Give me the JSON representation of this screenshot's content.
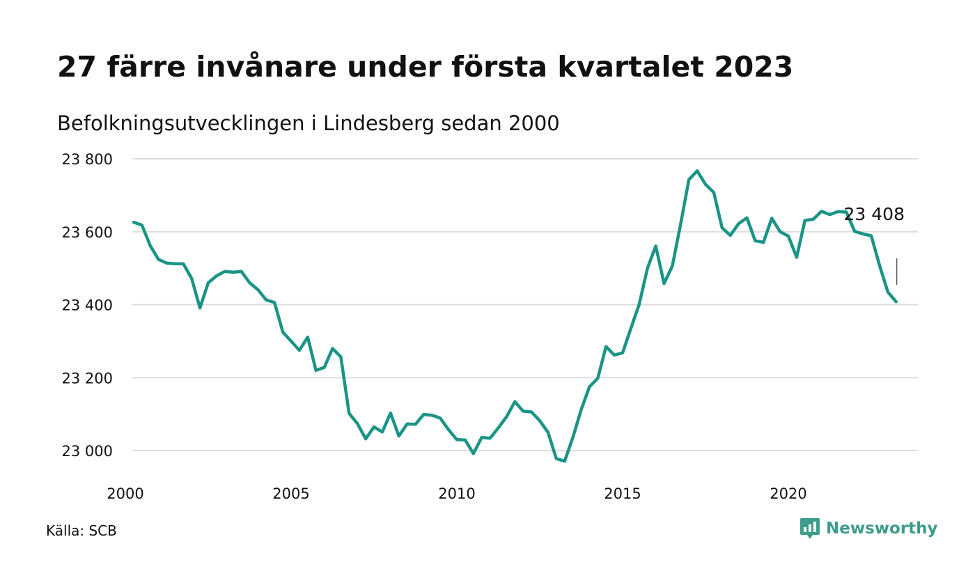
{
  "title": "27 färre invånare under första kvartalet 2023",
  "subtitle": "Befolkningsutvecklingen i Lindesberg sedan 2000",
  "source": "Källa: SCB",
  "brand": {
    "name": "Newsworthy",
    "color": "#3d9c8a",
    "icon": "newsworthy-logo-icon"
  },
  "chart_data": {
    "type": "line",
    "title": "27 färre invånare under första kvartalet 2023",
    "subtitle": "Befolkningsutvecklingen i Lindesberg sedan 2000",
    "xlabel": "",
    "ylabel": "",
    "xlim": [
      2000,
      2023.75
    ],
    "ylim": [
      22960,
      23810
    ],
    "y_ticks": [
      23000,
      23200,
      23400,
      23600,
      23800
    ],
    "y_tick_labels": [
      "23 000",
      "23 200",
      "23 400",
      "23 600",
      "23 800"
    ],
    "x_ticks": [
      2000,
      2005,
      2010,
      2015,
      2020
    ],
    "x_tick_labels": [
      "2000",
      "2005",
      "2010",
      "2015",
      "2020"
    ],
    "grid": "horizontal",
    "legend": "none",
    "line_color": "#1a9485",
    "last_value_label": "23 408",
    "series": [
      {
        "x": [
          2000.25,
          2000.5,
          2000.75,
          2001.0,
          2001.25,
          2001.5,
          2001.75,
          2002.0,
          2002.25,
          2002.5,
          2002.75,
          2003.0,
          2003.25,
          2003.5,
          2003.75,
          2004.0,
          2004.25,
          2004.5,
          2004.75,
          2005.0,
          2005.25,
          2005.5,
          2005.75,
          2006.0,
          2006.25,
          2006.5,
          2006.75,
          2007.0,
          2007.25,
          2007.5,
          2007.75,
          2008.0,
          2008.25,
          2008.5,
          2008.75,
          2009.0,
          2009.25,
          2009.5,
          2009.75,
          2010.0,
          2010.25,
          2010.5,
          2010.75,
          2011.0,
          2011.25,
          2011.5,
          2011.75,
          2012.0,
          2012.25,
          2012.5,
          2012.75,
          2013.0,
          2013.25,
          2013.5,
          2013.75,
          2014.0,
          2014.25,
          2014.5,
          2014.75,
          2015.0,
          2015.25,
          2015.5,
          2015.75,
          2016.0,
          2016.25,
          2016.5,
          2016.75,
          2017.0,
          2017.25,
          2017.5,
          2017.75,
          2018.0,
          2018.25,
          2018.5,
          2018.75,
          2019.0,
          2019.25,
          2019.5,
          2019.75,
          2020.0,
          2020.25,
          2020.5,
          2020.75,
          2021.0,
          2021.25,
          2021.5,
          2021.75,
          2022.0,
          2022.25,
          2022.5,
          2022.75,
          2023.0,
          2023.25
        ],
        "y": [
          23626,
          23618,
          23562,
          23524,
          23514,
          23512,
          23512,
          23472,
          23391,
          23460,
          23479,
          23491,
          23489,
          23491,
          23460,
          23441,
          23413,
          23406,
          23325,
          23300,
          23275,
          23311,
          23220,
          23228,
          23280,
          23257,
          23102,
          23074,
          23032,
          23065,
          23051,
          23103,
          23040,
          23073,
          23072,
          23099,
          23097,
          23089,
          23057,
          23030,
          23029,
          22992,
          23036,
          23034,
          23062,
          23093,
          23134,
          23108,
          23106,
          23082,
          23050,
          22978,
          22971,
          23036,
          23112,
          23175,
          23198,
          23285,
          23262,
          23268,
          23335,
          23401,
          23500,
          23561,
          23458,
          23506,
          23621,
          23743,
          23767,
          23730,
          23708,
          23611,
          23590,
          23622,
          23638,
          23575,
          23571,
          23637,
          23600,
          23588,
          23530,
          23631,
          23634,
          23656,
          23647,
          23655,
          23654,
          23601,
          23594,
          23589,
          23508,
          23435,
          23408
        ]
      }
    ]
  }
}
